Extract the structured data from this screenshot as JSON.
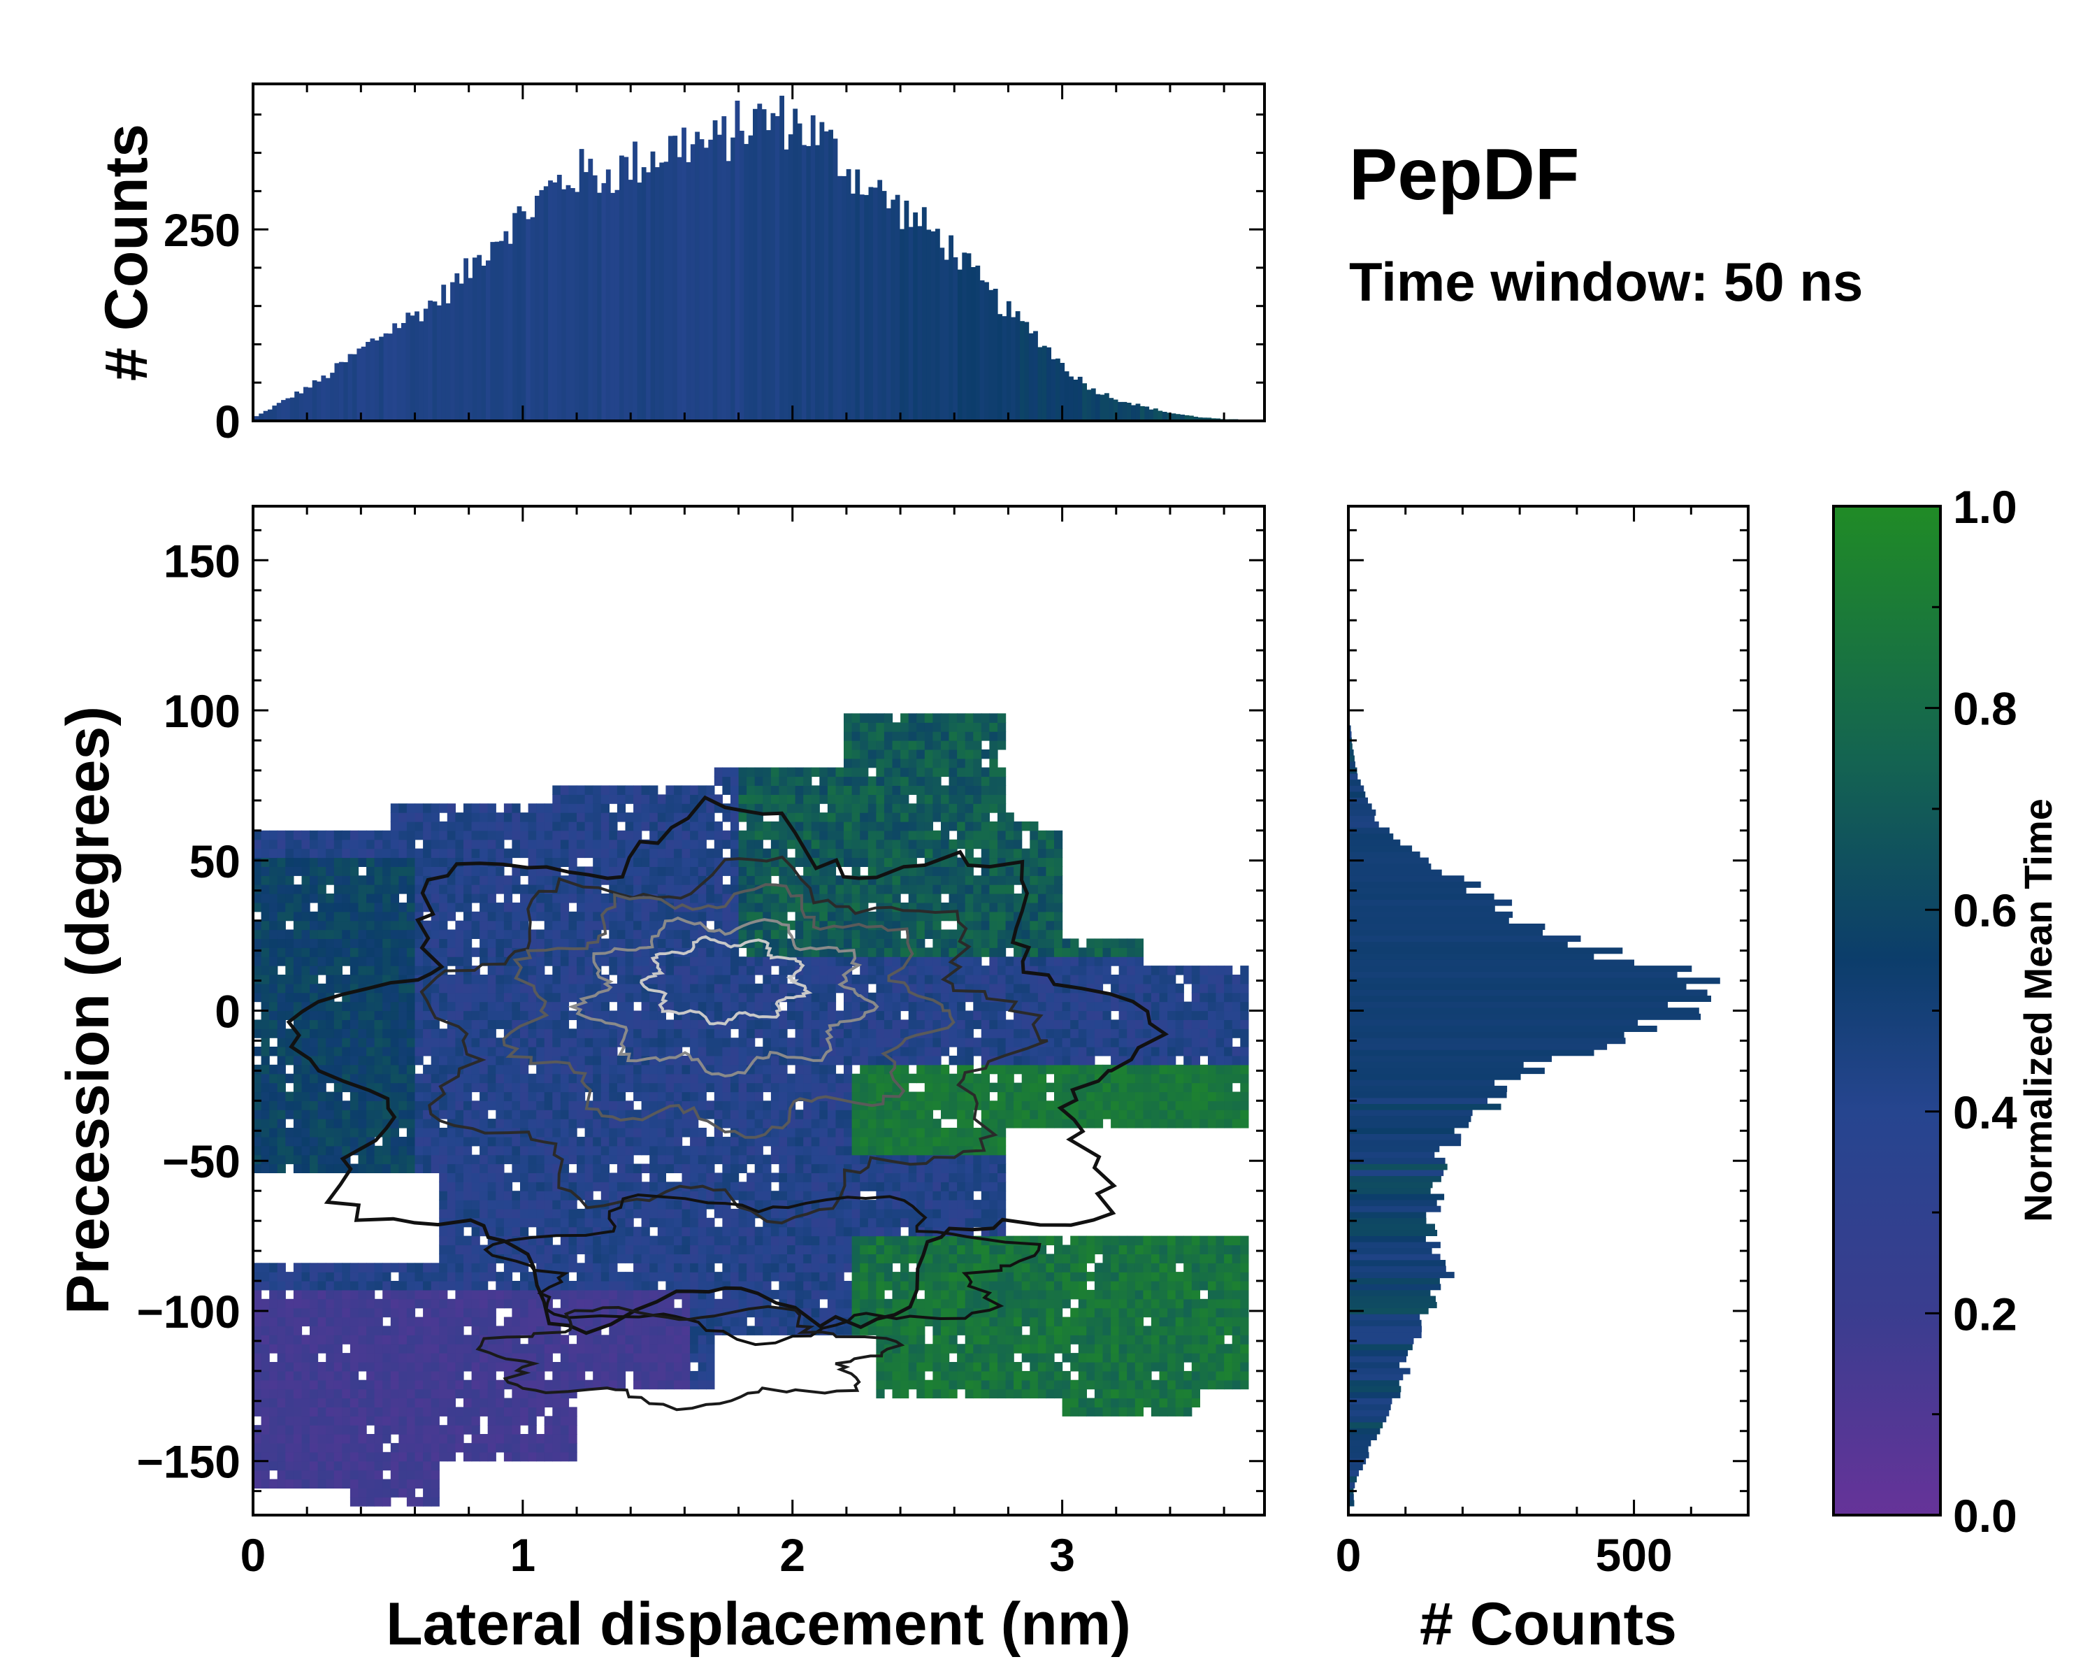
{
  "chart_data": [
    {
      "id": "top-histogram",
      "type": "bar",
      "title": "",
      "xlabel": "",
      "ylabel": "# Counts",
      "xlim": [
        0,
        3.75
      ],
      "ylim": [
        0,
        440
      ],
      "yticks": [
        0,
        250
      ],
      "bin_width": 0.0165,
      "series_envelope": {
        "x": [
          0.0,
          0.1,
          0.25,
          0.4,
          0.5,
          0.6,
          0.7,
          0.8,
          0.9,
          1.0,
          1.1,
          1.2,
          1.3,
          1.4,
          1.5,
          1.6,
          1.7,
          1.8,
          1.9,
          2.0,
          2.1,
          2.2,
          2.3,
          2.4,
          2.5,
          2.6,
          2.7,
          2.8,
          2.9,
          3.0,
          3.1,
          3.2,
          3.3,
          3.4,
          3.5,
          3.6
        ],
        "values": [
          5,
          25,
          55,
          95,
          120,
          140,
          165,
          200,
          245,
          270,
          305,
          325,
          320,
          335,
          350,
          365,
          360,
          385,
          395,
          390,
          370,
          330,
          300,
          275,
          250,
          220,
          175,
          140,
          110,
          70,
          42,
          28,
          18,
          10,
          5,
          2
        ]
      },
      "bar_color_scale": "Normalized Mean Time"
    },
    {
      "id": "main-2d-histogram",
      "type": "heatmap",
      "title": "",
      "xlabel": "Lateral displacement (nm)",
      "ylabel": "Precession (degrees)",
      "xlim": [
        0,
        3.75
      ],
      "ylim": [
        -168,
        168
      ],
      "xticks": [
        0,
        1,
        2,
        3
      ],
      "yticks": [
        150,
        100,
        50,
        0,
        -50,
        -100,
        -150
      ],
      "ytick_labels": [
        "150",
        "100",
        "50",
        "0",
        "−50",
        "−100",
        "−150"
      ],
      "color_metric": "Normalized Mean Time",
      "contour_levels": 5,
      "color_regions": [
        {
          "name": "left-low-precession",
          "x": [
            0.0,
            1.3
          ],
          "y": [
            -165,
            -100
          ],
          "value": 0.15
        },
        {
          "name": "left-mid",
          "x": [
            0.0,
            0.8
          ],
          "y": [
            -50,
            60
          ],
          "value": 0.55
        },
        {
          "name": "center",
          "x": [
            0.8,
            2.4
          ],
          "y": [
            -90,
            60
          ],
          "value": 0.4
        },
        {
          "name": "upper-right",
          "x": [
            1.8,
            3.0
          ],
          "y": [
            20,
            100
          ],
          "value": 0.75
        },
        {
          "name": "lower-right",
          "x": [
            2.3,
            3.7
          ],
          "y": [
            -135,
            -80
          ],
          "value": 0.85
        }
      ],
      "density_peak": {
        "x": 1.9,
        "y": 10
      }
    },
    {
      "id": "right-histogram",
      "type": "bar",
      "orientation": "horizontal",
      "title": "",
      "xlabel": "# Counts",
      "ylabel": "",
      "xlim": [
        0,
        700
      ],
      "ylim": [
        -168,
        168
      ],
      "xticks": [
        0,
        500
      ],
      "bin_height": 2,
      "series_envelope": {
        "y": [
          -160,
          -150,
          -140,
          -130,
          -120,
          -110,
          -100,
          -95,
          -90,
          -85,
          -80,
          -75,
          -70,
          -60,
          -50,
          -40,
          -30,
          -20,
          -10,
          0,
          5,
          10,
          20,
          30,
          40,
          50,
          60,
          70,
          80,
          90
        ],
        "values": [
          10,
          30,
          55,
          80,
          100,
          115,
          150,
          160,
          170,
          165,
          150,
          145,
          150,
          155,
          160,
          200,
          260,
          320,
          450,
          600,
          610,
          590,
          420,
          300,
          220,
          120,
          60,
          30,
          12,
          5
        ]
      }
    },
    {
      "id": "colorbar",
      "type": "colorbar",
      "label": "Normalized Mean Time",
      "range": [
        0.0,
        1.0
      ],
      "ticks": [
        "0.0",
        "0.2",
        "0.4",
        "0.6",
        "0.8",
        "1.0"
      ],
      "colors": [
        "#663399",
        "#3a3d8f",
        "#26458f",
        "#0c3d6b",
        "#146451",
        "#208b26"
      ]
    }
  ],
  "texts": {
    "title": "PepDF",
    "subtitle": "Time window: 50 ns"
  },
  "palette": {
    "purple": "#663399",
    "blue": "#0c3d6b",
    "green": "#208b26"
  }
}
